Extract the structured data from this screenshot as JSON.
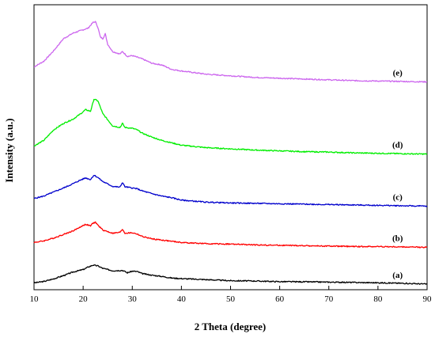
{
  "chart_data": {
    "type": "line",
    "title": "",
    "xlabel": "2 Theta (degree)",
    "ylabel": "Intensity (a.u.)",
    "xlim": [
      10,
      90
    ],
    "x_ticks": [
      10,
      20,
      30,
      40,
      50,
      60,
      70,
      80,
      90
    ],
    "y_ticks_shown": false,
    "grid": false,
    "legend": "none",
    "series": [
      {
        "name": "(a)",
        "color": "#000000",
        "points": [
          [
            10,
            0.5
          ],
          [
            12,
            2.2
          ],
          [
            14,
            5.5
          ],
          [
            16,
            9.5
          ],
          [
            18,
            14
          ],
          [
            20,
            17
          ],
          [
            21,
            20
          ],
          [
            22,
            22.5
          ],
          [
            23,
            21.5
          ],
          [
            24,
            18.5
          ],
          [
            26,
            15.5
          ],
          [
            28,
            16
          ],
          [
            29,
            13
          ],
          [
            30,
            15
          ],
          [
            31,
            14.5
          ],
          [
            32,
            12
          ],
          [
            34,
            10
          ],
          [
            36,
            8.5
          ],
          [
            38,
            6.5
          ],
          [
            40,
            5.8
          ],
          [
            45,
            4.5
          ],
          [
            50,
            3.2
          ],
          [
            55,
            2.8
          ],
          [
            60,
            2.0
          ],
          [
            65,
            1.8
          ],
          [
            70,
            1.4
          ],
          [
            75,
            1.0
          ],
          [
            80,
            0.6
          ],
          [
            85,
            0.0
          ],
          [
            90,
            -1.0
          ]
        ]
      },
      {
        "name": "(b)",
        "color": "#ff0000",
        "points": [
          [
            10,
            50.5
          ],
          [
            12,
            52.5
          ],
          [
            14,
            56
          ],
          [
            16,
            60.5
          ],
          [
            18,
            65
          ],
          [
            19.5,
            70
          ],
          [
            20.5,
            73
          ],
          [
            21.5,
            71
          ],
          [
            22,
            74.5
          ],
          [
            22.5,
            75.5
          ],
          [
            23,
            72
          ],
          [
            24,
            66
          ],
          [
            26,
            62
          ],
          [
            27.5,
            63
          ],
          [
            28,
            67
          ],
          [
            28.5,
            62
          ],
          [
            30,
            62.5
          ],
          [
            31,
            61
          ],
          [
            32,
            58
          ],
          [
            34,
            55
          ],
          [
            36,
            53.5
          ],
          [
            38,
            52
          ],
          [
            40,
            50.5
          ],
          [
            45,
            49
          ],
          [
            50,
            48.5
          ],
          [
            55,
            47.5
          ],
          [
            60,
            47
          ],
          [
            65,
            46.5
          ],
          [
            70,
            46
          ],
          [
            75,
            45.5
          ],
          [
            80,
            45.5
          ],
          [
            85,
            45
          ],
          [
            90,
            44.5
          ]
        ]
      },
      {
        "name": "(c)",
        "color": "#0000cc",
        "points": [
          [
            10,
            105
          ],
          [
            12,
            108
          ],
          [
            14,
            113
          ],
          [
            16,
            118
          ],
          [
            18,
            123.5
          ],
          [
            19.5,
            128
          ],
          [
            20.5,
            130.5
          ],
          [
            21.5,
            128.5
          ],
          [
            22.2,
            134
          ],
          [
            23,
            131
          ],
          [
            24,
            126
          ],
          [
            26,
            120
          ],
          [
            27.5,
            119
          ],
          [
            28,
            125
          ],
          [
            28.5,
            119.5
          ],
          [
            30,
            118
          ],
          [
            31,
            117
          ],
          [
            32,
            114.5
          ],
          [
            34,
            111
          ],
          [
            36,
            108
          ],
          [
            38,
            106
          ],
          [
            40,
            103
          ],
          [
            45,
            100.5
          ],
          [
            50,
            99.5
          ],
          [
            55,
            99
          ],
          [
            60,
            98.5
          ],
          [
            65,
            98
          ],
          [
            70,
            97.5
          ],
          [
            75,
            97
          ],
          [
            80,
            96.5
          ],
          [
            85,
            96
          ],
          [
            90,
            95.5
          ]
        ]
      },
      {
        "name": "(d)",
        "color": "#00ee00",
        "points": [
          [
            10,
            170
          ],
          [
            12,
            177
          ],
          [
            14,
            190
          ],
          [
            16,
            198
          ],
          [
            18,
            203.5
          ],
          [
            19.5,
            210
          ],
          [
            20.5,
            215
          ],
          [
            21.5,
            213
          ],
          [
            22.2,
            228
          ],
          [
            23,
            226
          ],
          [
            24,
            210
          ],
          [
            26,
            195
          ],
          [
            27.5,
            193
          ],
          [
            28,
            198
          ],
          [
            28.5,
            193
          ],
          [
            30,
            192
          ],
          [
            31,
            190
          ],
          [
            32,
            186
          ],
          [
            34,
            181
          ],
          [
            36,
            177
          ],
          [
            38,
            174
          ],
          [
            40,
            171
          ],
          [
            45,
            168
          ],
          [
            50,
            166.5
          ],
          [
            55,
            165
          ],
          [
            60,
            164
          ],
          [
            65,
            163
          ],
          [
            70,
            162.5
          ],
          [
            75,
            161.5
          ],
          [
            80,
            161
          ],
          [
            85,
            160.5
          ],
          [
            90,
            160
          ]
        ]
      },
      {
        "name": "(e)",
        "color": "#cc66ee",
        "points": [
          [
            10,
            268
          ],
          [
            12,
            275
          ],
          [
            14,
            288
          ],
          [
            16,
            303
          ],
          [
            18,
            310
          ],
          [
            20,
            314
          ],
          [
            21,
            316
          ],
          [
            22,
            323
          ],
          [
            22.5,
            324
          ],
          [
            23,
            317
          ],
          [
            23.5,
            305
          ],
          [
            24,
            303
          ],
          [
            24.5,
            309
          ],
          [
            25,
            296
          ],
          [
            26,
            287
          ],
          [
            27.5,
            284
          ],
          [
            28,
            287
          ],
          [
            29,
            281
          ],
          [
            30,
            282
          ],
          [
            32,
            278
          ],
          [
            34,
            272.5
          ],
          [
            36,
            270.5
          ],
          [
            38,
            265
          ],
          [
            40,
            263
          ],
          [
            45,
            259
          ],
          [
            50,
            257
          ],
          [
            55,
            255
          ],
          [
            60,
            254
          ],
          [
            65,
            253
          ],
          [
            70,
            252
          ],
          [
            75,
            251
          ],
          [
            80,
            250.5
          ],
          [
            85,
            250
          ],
          [
            90,
            249.5
          ]
        ]
      }
    ]
  }
}
